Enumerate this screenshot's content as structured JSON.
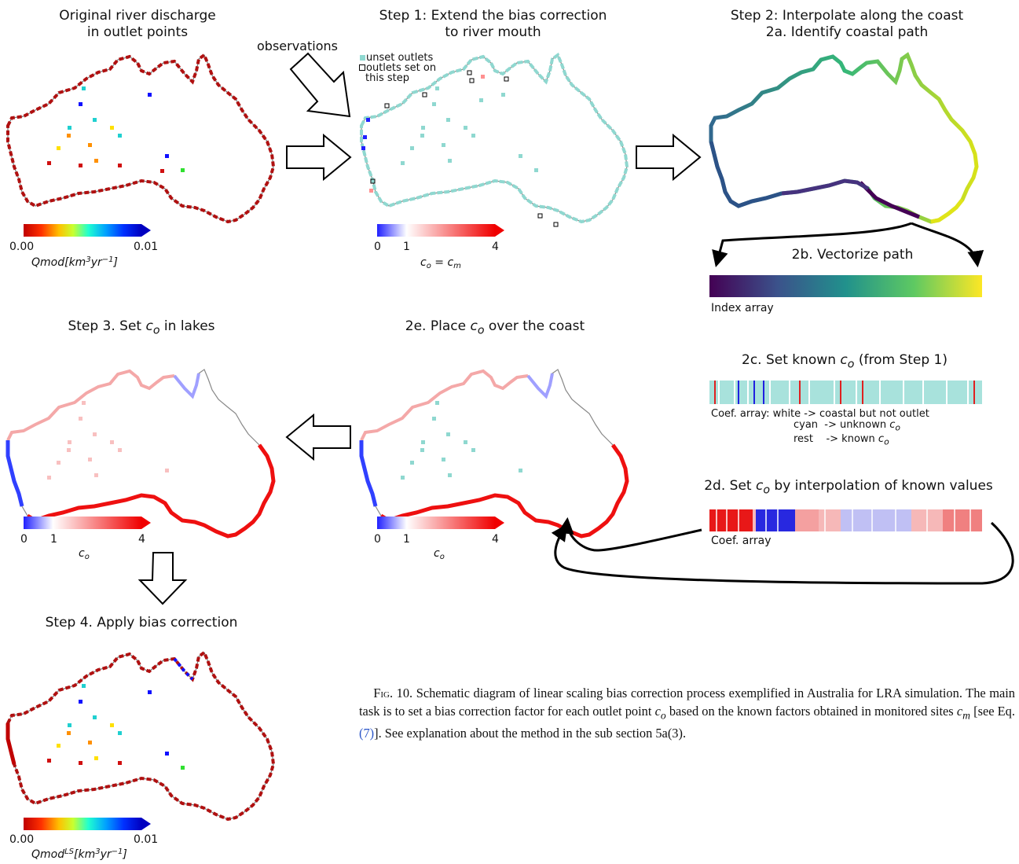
{
  "panels": {
    "p0_title_1": "Original river discharge",
    "p0_title_2": "in outlet points",
    "p1_title_1": "Step 1: Extend the bias correction",
    "p1_title_2": "to river mouth",
    "p2_title_1": "Step 2: Interpolate along the coast",
    "p2_title_2": "2a. Identify coastal path",
    "p3_title": "Step 3. Set c_o in lakes",
    "p4_title": "2e. Place c_o over the coast",
    "p5_title": "Step 4. Apply bias correction"
  },
  "arrows": {
    "observations": "observations"
  },
  "legend_step1": {
    "unset": "unset outlets",
    "set_1": "outlets set on",
    "set_2": "this step"
  },
  "colorbars": {
    "qmod": {
      "min": "0.00",
      "max": "0.01",
      "label": "Qmod[km³yr⁻¹]"
    },
    "qmod_ls": {
      "min": "0.00",
      "max": "0.01",
      "label": "Qmod^LS[km³yr⁻¹]"
    },
    "co_cm": {
      "t0": "0",
      "t1": "1",
      "t4": "4",
      "label": "c_o = c_m"
    },
    "co": {
      "t0": "0",
      "t1": "1",
      "t4": "4",
      "label": "c_o"
    }
  },
  "step2": {
    "b_title": "2b. Vectorize path",
    "b_caption": "Index array",
    "c_title": "2c. Set known c_o (from Step 1)",
    "c_line1": "Coef. array: white -> coastal but not outlet",
    "c_line2": "cyan  -> unknown c_o",
    "c_line3": "rest   -> known c_o",
    "d_title": "2d. Set c_o by interpolation of known values",
    "d_caption": "Coef. array"
  },
  "caption": {
    "fig": "Fig. 10.",
    "text_1": "Schematic diagram of linear scaling bias correction process exemplified in Australia for LRA simulation. The main task is to set a bias correction factor for each outlet point",
    "text_2": "based on the known factors obtained in monitored sites",
    "text_3": "[see Eq.",
    "eq_ref": "(7)",
    "text_4": "]. See explanation about the method in the sub section 5a(3)."
  },
  "colors": {
    "jet_red": "#c00000",
    "jet_blue": "#1010ff",
    "cyan": "#8fd8d0",
    "viridis_start": "#440154",
    "viridis_end": "#fde725",
    "bwr_red": "#f00000",
    "bwr_blue": "#2020ff"
  }
}
